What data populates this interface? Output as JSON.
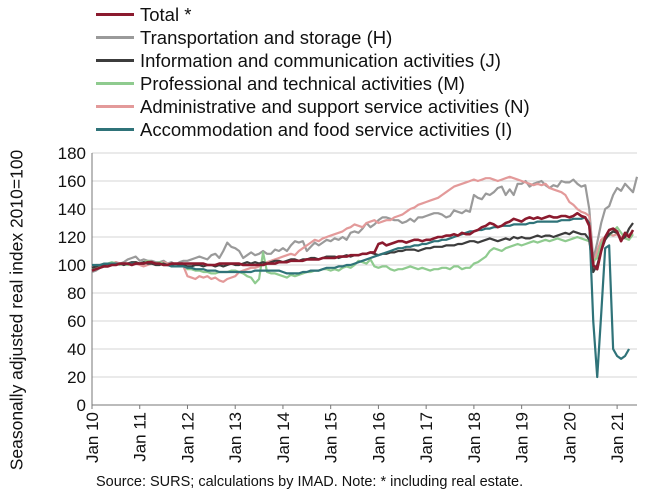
{
  "chart_data": {
    "type": "line",
    "ylabel": "Seasonally adjusted real index 2010=100",
    "xlabel": "",
    "ylim": [
      0,
      180
    ],
    "yticks": [
      "0",
      "20",
      "40",
      "60",
      "80",
      "100",
      "120",
      "140",
      "160",
      "180"
    ],
    "xticks": [
      "Jan 10",
      "Jan 11",
      "Jan 12",
      "Jan 13",
      "Jan 14",
      "Jan 15",
      "Jan 16",
      "Jan 17",
      "Jan 18",
      "Jan 19",
      "Jan 20",
      "Jan 21"
    ],
    "x_start": "2010-01",
    "frequency": "monthly",
    "legend_position": "top",
    "grid": "horizontal",
    "source": "Source:  SURS; calculations by IMAD. Note: * including real estate.",
    "series": [
      {
        "name": "Total *",
        "color": "#8b1a2e",
        "values": [
          96,
          97,
          98,
          99,
          99,
          100,
          100,
          101,
          101,
          101,
          100,
          101,
          101,
          101,
          102,
          102,
          101,
          101,
          100,
          100,
          101,
          101,
          101,
          101,
          101,
          101,
          101,
          101,
          101,
          100,
          100,
          100,
          101,
          101,
          101,
          101,
          101,
          101,
          100,
          100,
          100,
          100,
          100,
          100,
          101,
          101,
          101,
          102,
          102,
          102,
          103,
          103,
          103,
          103,
          104,
          104,
          104,
          104,
          105,
          105,
          105,
          105,
          106,
          106,
          106,
          107,
          107,
          107,
          108,
          108,
          109,
          109,
          115,
          116,
          114,
          115,
          116,
          117,
          117,
          116,
          117,
          118,
          118,
          117,
          118,
          118,
          119,
          120,
          120,
          121,
          121,
          122,
          121,
          123,
          122,
          122,
          124,
          125,
          127,
          128,
          130,
          129,
          127,
          128,
          130,
          131,
          133,
          132,
          131,
          133,
          134,
          133,
          134,
          133,
          134,
          135,
          134,
          134,
          135,
          135,
          134,
          135,
          137,
          135,
          134,
          128,
          100,
          97,
          110,
          120,
          125,
          126,
          124,
          117,
          123,
          120,
          125
        ]
      },
      {
        "name": "Transportation and storage (H)",
        "color": "#9a9a9a",
        "values": [
          95,
          96,
          98,
          99,
          100,
          101,
          102,
          101,
          102,
          104,
          105,
          106,
          103,
          104,
          103,
          103,
          102,
          102,
          103,
          101,
          102,
          100,
          102,
          103,
          103,
          104,
          105,
          106,
          105,
          104,
          107,
          108,
          105,
          110,
          116,
          113,
          112,
          110,
          105,
          107,
          109,
          107,
          108,
          110,
          108,
          108,
          111,
          110,
          112,
          110,
          114,
          117,
          116,
          117,
          110,
          113,
          116,
          114,
          116,
          118,
          117,
          119,
          118,
          120,
          118,
          123,
          124,
          123,
          126,
          130,
          127,
          129,
          132,
          134,
          134,
          133,
          132,
          132,
          130,
          131,
          133,
          131,
          134,
          134,
          135,
          136,
          137,
          137,
          136,
          134,
          135,
          139,
          138,
          137,
          139,
          138,
          150,
          148,
          147,
          151,
          150,
          152,
          155,
          156,
          150,
          154,
          150,
          158,
          158,
          160,
          156,
          158,
          159,
          160,
          157,
          155,
          157,
          156,
          160,
          159,
          159,
          161,
          158,
          156,
          157,
          140,
          104,
          116,
          130,
          140,
          142,
          150,
          155,
          153,
          158,
          155,
          152,
          163
        ]
      },
      {
        "name": "Information and communication activities (J)",
        "color": "#3c3c3c",
        "values": [
          98,
          99,
          100,
          100,
          101,
          100,
          101,
          101,
          100,
          101,
          102,
          102,
          101,
          102,
          101,
          101,
          100,
          100,
          101,
          100,
          100,
          101,
          100,
          100,
          99,
          99,
          100,
          100,
          99,
          100,
          100,
          99,
          100,
          99,
          100,
          101,
          100,
          100,
          101,
          102,
          101,
          102,
          101,
          102,
          101,
          102,
          103,
          103,
          102,
          103,
          104,
          104,
          103,
          104,
          104,
          105,
          105,
          104,
          105,
          106,
          106,
          106,
          105,
          106,
          107,
          106,
          107,
          107,
          108,
          108,
          109,
          108,
          107,
          108,
          108,
          109,
          109,
          110,
          110,
          111,
          111,
          111,
          110,
          111,
          112,
          112,
          113,
          113,
          113,
          114,
          114,
          114,
          115,
          115,
          116,
          117,
          117,
          116,
          117,
          118,
          119,
          118,
          117,
          118,
          119,
          118,
          120,
          119,
          120,
          119,
          119,
          120,
          121,
          120,
          121,
          121,
          120,
          121,
          122,
          123,
          122,
          124,
          123,
          122,
          122,
          118,
          95,
          100,
          110,
          118,
          122,
          124,
          123,
          118,
          120,
          126,
          130
        ]
      },
      {
        "name": "Professional and technical activities (M)",
        "color": "#8fcb8f",
        "values": [
          97,
          98,
          99,
          100,
          101,
          102,
          101,
          100,
          101,
          100,
          101,
          102,
          101,
          102,
          103,
          102,
          101,
          102,
          101,
          100,
          101,
          101,
          100,
          101,
          97,
          97,
          96,
          96,
          95,
          95,
          94,
          94,
          95,
          95,
          95,
          96,
          96,
          95,
          94,
          92,
          91,
          87,
          90,
          109,
          95,
          94,
          94,
          93,
          92,
          91,
          93,
          92,
          93,
          94,
          95,
          95,
          96,
          96,
          97,
          97,
          96,
          97,
          96,
          98,
          99,
          98,
          100,
          103,
          102,
          101,
          104,
          99,
          98,
          99,
          99,
          97,
          96,
          97,
          97,
          98,
          99,
          98,
          97,
          98,
          97,
          96,
          97,
          97,
          98,
          98,
          97,
          99,
          99,
          97,
          98,
          98,
          101,
          102,
          104,
          106,
          110,
          112,
          111,
          110,
          112,
          113,
          114,
          115,
          114,
          115,
          116,
          117,
          116,
          117,
          118,
          117,
          118,
          119,
          118,
          117,
          118,
          119,
          120,
          119,
          118,
          117,
          103,
          105,
          115,
          120,
          121,
          124,
          127,
          123,
          119,
          118,
          122
        ]
      },
      {
        "name": "Administrative and support service activities (N)",
        "color": "#e39a9a",
        "values": [
          99,
          100,
          100,
          101,
          100,
          101,
          102,
          101,
          100,
          101,
          100,
          101,
          100,
          99,
          100,
          101,
          100,
          101,
          102,
          101,
          100,
          101,
          100,
          99,
          92,
          91,
          90,
          92,
          91,
          92,
          90,
          91,
          89,
          88,
          90,
          91,
          92,
          95,
          96,
          97,
          98,
          98,
          99,
          101,
          102,
          103,
          104,
          105,
          106,
          107,
          108,
          107,
          110,
          112,
          114,
          116,
          118,
          117,
          119,
          120,
          121,
          122,
          123,
          124,
          126,
          127,
          129,
          128,
          127,
          130,
          131,
          132,
          130,
          131,
          132,
          132,
          134,
          135,
          136,
          138,
          140,
          141,
          143,
          144,
          145,
          146,
          147,
          148,
          150,
          152,
          154,
          156,
          157,
          158,
          159,
          160,
          161,
          160,
          161,
          162,
          162,
          161,
          160,
          161,
          162,
          163,
          162,
          161,
          160,
          159,
          158,
          157,
          158,
          157,
          158,
          155,
          154,
          153,
          152,
          150,
          145,
          143,
          140,
          138,
          137,
          135,
          100,
          110,
          118,
          120,
          122,
          121,
          122,
          120,
          119,
          122,
          123
        ]
      },
      {
        "name": "Accommodation and food service activities (I)",
        "color": "#2f7379",
        "values": [
          100,
          100,
          100,
          101,
          101,
          101,
          101,
          101,
          101,
          101,
          101,
          101,
          101,
          101,
          102,
          102,
          101,
          101,
          100,
          100,
          99,
          99,
          99,
          99,
          98,
          98,
          97,
          97,
          97,
          96,
          96,
          96,
          95,
          95,
          95,
          95,
          95,
          95,
          95,
          95,
          95,
          96,
          96,
          96,
          96,
          96,
          96,
          96,
          95,
          94,
          94,
          94,
          94,
          95,
          95,
          96,
          96,
          96,
          97,
          98,
          98,
          98,
          99,
          99,
          100,
          100,
          101,
          102,
          103,
          104,
          105,
          106,
          107,
          108,
          109,
          110,
          111,
          112,
          112,
          113,
          113,
          114,
          114,
          115,
          115,
          116,
          117,
          117,
          118,
          118,
          119,
          120,
          121,
          122,
          123,
          124,
          124,
          125,
          125,
          126,
          126,
          127,
          127,
          128,
          128,
          128,
          129,
          129,
          129,
          129,
          130,
          130,
          131,
          131,
          131,
          131,
          131,
          131,
          132,
          132,
          132,
          133,
          133,
          133,
          134,
          130,
          60,
          20,
          65,
          112,
          114,
          40,
          35,
          33,
          35,
          40
        ]
      }
    ]
  }
}
